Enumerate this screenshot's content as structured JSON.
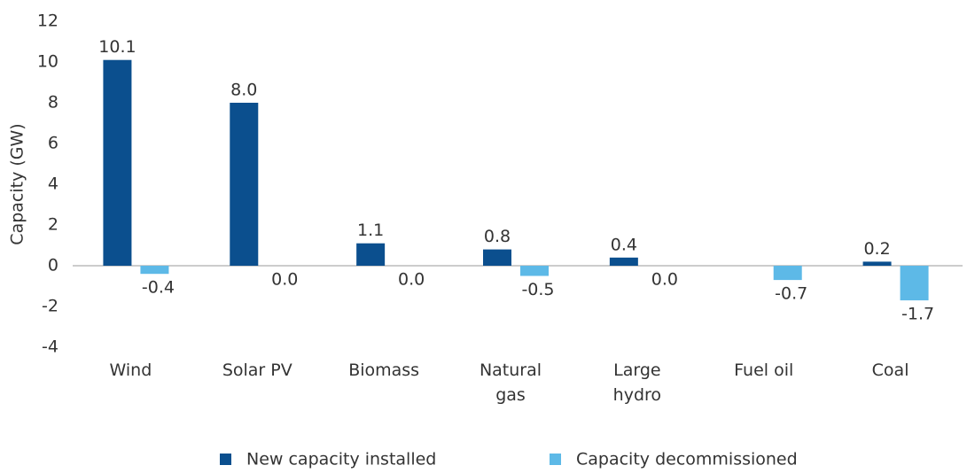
{
  "chart_data": {
    "type": "bar",
    "ylabel": "Capacity (GW)",
    "categories": [
      "Wind",
      "Solar PV",
      "Biomass",
      "Natural\ngas",
      "Large\nhydro",
      "Fuel oil",
      "Coal"
    ],
    "series": [
      {
        "name": "New capacity installed",
        "color": "#0b4f8e",
        "values": [
          10.1,
          8.0,
          1.1,
          0.8,
          0.4,
          null,
          0.2
        ],
        "value_labels": [
          "10.1",
          "8.0",
          "1.1",
          "0.8",
          "0.4",
          null,
          "0.2"
        ]
      },
      {
        "name": "Capacity decommissioned",
        "color": "#5db9e7",
        "values": [
          -0.4,
          0.0,
          0.0,
          -0.5,
          0.0,
          -0.7,
          -1.7
        ],
        "value_labels": [
          "-0.4",
          "0.0",
          "0.0",
          "-0.5",
          "0.0",
          "-0.7",
          "-1.7"
        ]
      }
    ],
    "ylim": [
      -4,
      12
    ],
    "yticks": [
      12,
      10,
      8,
      6,
      4,
      2,
      0,
      -2,
      -4
    ],
    "grid": false,
    "legend": "bottom"
  }
}
